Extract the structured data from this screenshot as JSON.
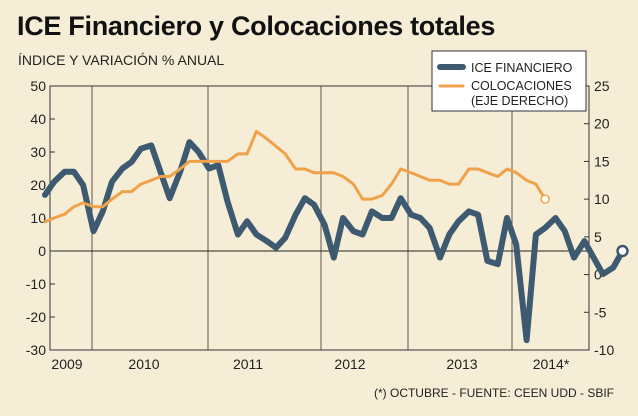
{
  "title": "ICE Financiero y Colocaciones totales",
  "subtitle": "ÍNDICE Y VARIACIÓN % ANUAL",
  "footnote": "(*) OCTUBRE - FUENTE: CEEN UDD - SBIF",
  "chart_data": {
    "type": "line",
    "title": "ICE Financiero y Colocaciones totales",
    "subtitle": "ÍNDICE Y VARIACIÓN % ANUAL",
    "x_ticks": [
      "2009",
      "2010",
      "2011",
      "2012",
      "2013",
      "2014*"
    ],
    "x_range": [
      2009.0,
      2014.83
    ],
    "y_left": {
      "ylim": [
        -30,
        50
      ],
      "ticks": [
        "50",
        "40",
        "30",
        "20",
        "10",
        "0",
        "-10",
        "-20",
        "-30"
      ]
    },
    "y_right": {
      "ylim": [
        -10,
        25
      ],
      "ticks": [
        "25",
        "20",
        "15",
        "10",
        "5",
        "0",
        "-5",
        "-10"
      ]
    },
    "grid": {
      "vertical_at_years": true,
      "zero_line": true
    },
    "legend_position": "top-right",
    "colors": {
      "ice": "#3d5a70",
      "colocaciones": "#f0a24a",
      "background": "#f6edd7"
    },
    "series": [
      {
        "name": "ICE FINANCIERO",
        "axis": "left",
        "x": [
          2009.0,
          2009.08,
          2009.17,
          2009.25,
          2009.33,
          2009.42,
          2009.5,
          2009.58,
          2009.67,
          2009.75,
          2009.83,
          2009.92,
          2010.0,
          2010.08,
          2010.17,
          2010.25,
          2010.33,
          2010.42,
          2010.5,
          2010.58,
          2010.67,
          2010.75,
          2010.83,
          2010.92,
          2011.0,
          2011.08,
          2011.17,
          2011.25,
          2011.33,
          2011.42,
          2011.5,
          2011.58,
          2011.67,
          2011.75,
          2011.83,
          2011.92,
          2012.0,
          2012.08,
          2012.17,
          2012.25,
          2012.33,
          2012.42,
          2012.5,
          2012.58,
          2012.67,
          2012.75,
          2012.83,
          2012.92,
          2013.0,
          2013.08,
          2013.17,
          2013.25,
          2013.33,
          2013.42,
          2013.5,
          2013.58,
          2013.67,
          2013.75,
          2013.83,
          2013.92,
          2014.0,
          2014.08,
          2014.17,
          2014.25,
          2014.33,
          2014.42,
          2014.5,
          2014.58,
          2014.67,
          2014.75,
          2014.83
        ],
        "values": [
          17,
          21,
          24,
          24,
          20,
          6,
          12,
          21,
          25,
          27,
          31,
          32,
          24,
          16,
          24,
          33,
          30,
          25,
          26,
          15,
          5,
          9,
          5,
          3,
          1,
          4,
          11,
          16,
          14,
          8,
          -2,
          10,
          6,
          5,
          12,
          10,
          10,
          16,
          11,
          10,
          7,
          -2,
          5,
          9,
          12,
          11,
          -3,
          -4,
          10,
          2,
          -27,
          5,
          7,
          10,
          6,
          -2,
          3,
          -2,
          -7,
          -5,
          0,
          null,
          null,
          null,
          null,
          null,
          null,
          null,
          null,
          null,
          null
        ]
      },
      {
        "name": "COLOCACIONES (EJE DERECHO)",
        "axis": "right",
        "x": [
          2009.0,
          2009.08,
          2009.17,
          2009.25,
          2009.33,
          2009.42,
          2009.5,
          2009.58,
          2009.67,
          2009.75,
          2009.83,
          2009.92,
          2010.0,
          2010.08,
          2010.17,
          2010.25,
          2010.33,
          2010.42,
          2010.5,
          2010.58,
          2010.67,
          2010.75,
          2010.83,
          2010.92,
          2011.0,
          2011.08,
          2011.17,
          2011.25,
          2011.33,
          2011.42,
          2011.5,
          2011.58,
          2011.67,
          2011.75,
          2011.83,
          2011.92,
          2012.0,
          2012.08,
          2012.17,
          2012.25,
          2012.33,
          2012.42,
          2012.5,
          2012.58,
          2012.67,
          2012.75,
          2012.83,
          2012.92,
          2013.0,
          2013.08,
          2013.17,
          2013.25,
          2013.33
        ],
        "values": [
          7,
          7.5,
          8,
          9,
          9.5,
          9,
          9,
          10,
          11,
          11,
          12,
          12.5,
          13,
          13,
          14,
          15,
          15,
          15,
          15,
          15,
          16,
          16,
          19,
          18,
          17,
          16,
          14,
          14,
          13.5,
          13.5,
          13.5,
          13,
          12,
          10,
          10,
          10.5,
          12,
          14,
          13.5,
          13,
          12.5,
          12.5,
          12,
          12,
          14,
          14,
          13.5,
          13,
          14,
          13.5,
          12.5,
          12,
          10
        ]
      }
    ]
  }
}
